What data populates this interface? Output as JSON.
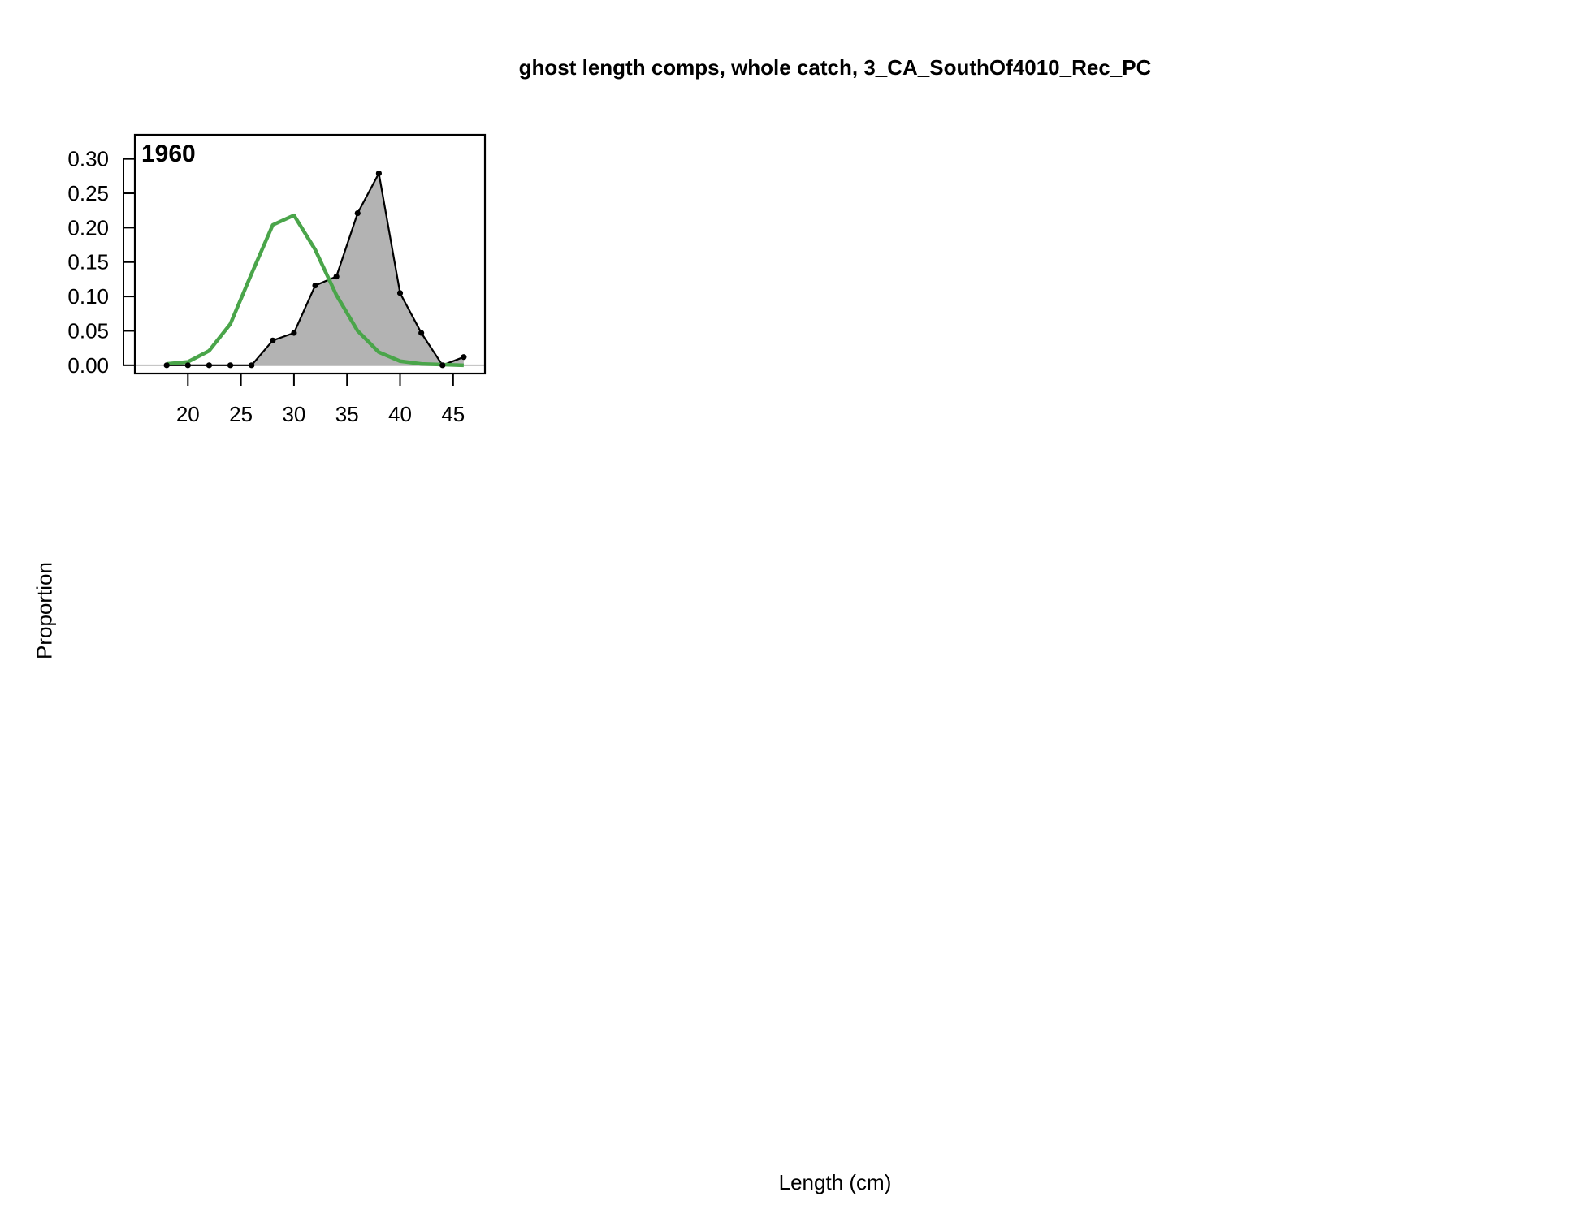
{
  "title": "ghost length comps, whole catch, 3_CA_SouthOf4010_Rec_PC",
  "ylabel": "Proportion",
  "xlabel": "Length (cm)",
  "colors": {
    "observed_fill": "#b3b3b3",
    "observed_line": "#000000",
    "expected_line": "#4aa54a",
    "zero_line": "#bebebe"
  },
  "chart_data": {
    "type": "area",
    "panel_label": "1960",
    "xlim": [
      15,
      48
    ],
    "ylim": [
      -0.012,
      0.335
    ],
    "x_ticks": [
      20,
      25,
      30,
      35,
      40,
      45
    ],
    "y_ticks": [
      0.0,
      0.05,
      0.1,
      0.15,
      0.2,
      0.25,
      0.3
    ],
    "y_tick_labels": [
      "0.00",
      "0.05",
      "0.10",
      "0.15",
      "0.20",
      "0.25",
      "0.30"
    ],
    "series": [
      {
        "style": "filled-polygon-with-points",
        "x": [
          18,
          20,
          22,
          24,
          26,
          28,
          30,
          32,
          34,
          36,
          38,
          40,
          42,
          44,
          46
        ],
        "y": [
          0.0,
          0.0,
          0.0,
          0.0,
          0.0,
          0.036,
          0.047,
          0.116,
          0.129,
          0.221,
          0.279,
          0.105,
          0.047,
          0.0,
          0.012
        ]
      },
      {
        "style": "line",
        "x": [
          18,
          20,
          22,
          24,
          26,
          28,
          30,
          32,
          34,
          36,
          38,
          40,
          42,
          44,
          46
        ],
        "y": [
          0.002,
          0.005,
          0.021,
          0.06,
          0.133,
          0.204,
          0.218,
          0.168,
          0.102,
          0.05,
          0.019,
          0.006,
          0.002,
          0.001,
          0.0
        ]
      }
    ]
  }
}
